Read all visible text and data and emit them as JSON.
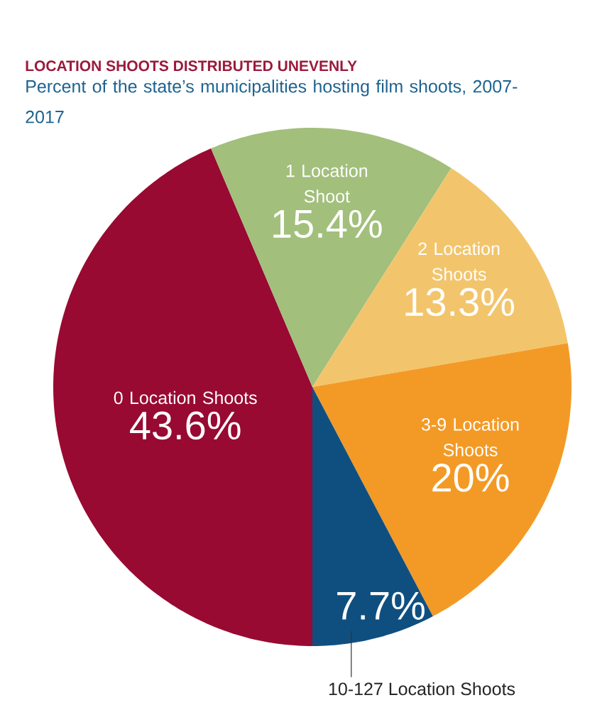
{
  "chart_data": {
    "type": "pie",
    "title": "LOCATION SHOOTS DISTRIBUTED UNEVENLY",
    "subtitle": "Percent of the state’s municipalities hosting film shoots, 2007-2017",
    "categories": [
      "0 Location Shoots",
      "1 Location Shoot",
      "2 Location Shoots",
      "3-9 Location Shoots",
      "10-127 Location Shoots"
    ],
    "values": [
      43.6,
      15.4,
      13.3,
      20,
      7.7
    ],
    "value_labels": [
      "43.6%",
      "15.4%",
      "13.3%",
      "20%",
      "7.7%"
    ],
    "colors": [
      "#980a32",
      "#a2bf7c",
      "#f2c56c",
      "#f39a26",
      "#0f4f80"
    ],
    "legend": false
  }
}
